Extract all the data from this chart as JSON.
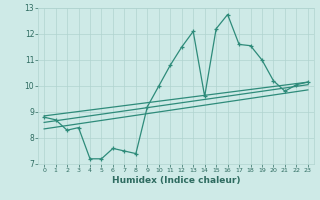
{
  "x": [
    0,
    1,
    2,
    3,
    4,
    5,
    6,
    7,
    8,
    9,
    10,
    11,
    12,
    13,
    14,
    15,
    16,
    17,
    18,
    19,
    20,
    21,
    22,
    23
  ],
  "y_main": [
    8.8,
    8.7,
    8.3,
    8.4,
    7.2,
    7.2,
    7.6,
    7.5,
    7.4,
    9.2,
    10.0,
    10.8,
    11.5,
    12.1,
    9.6,
    12.2,
    12.75,
    11.6,
    11.55,
    11.0,
    10.2,
    9.8,
    10.05,
    10.15
  ],
  "trend1_x": [
    0,
    23
  ],
  "trend1_y": [
    8.85,
    10.15
  ],
  "trend2_x": [
    0,
    23
  ],
  "trend2_y": [
    8.6,
    10.05
  ],
  "trend3_x": [
    0,
    23
  ],
  "trend3_y": [
    8.35,
    9.85
  ],
  "xlabel": "Humidex (Indice chaleur)",
  "xlim": [
    -0.5,
    23.5
  ],
  "ylim": [
    7.0,
    13.0
  ],
  "yticks": [
    7,
    8,
    9,
    10,
    11,
    12,
    13
  ],
  "xticks": [
    0,
    1,
    2,
    3,
    4,
    5,
    6,
    7,
    8,
    9,
    10,
    11,
    12,
    13,
    14,
    15,
    16,
    17,
    18,
    19,
    20,
    21,
    22,
    23
  ],
  "line_color": "#2e8b7a",
  "bg_color": "#ceeae7",
  "grid_color": "#b0d4d0"
}
